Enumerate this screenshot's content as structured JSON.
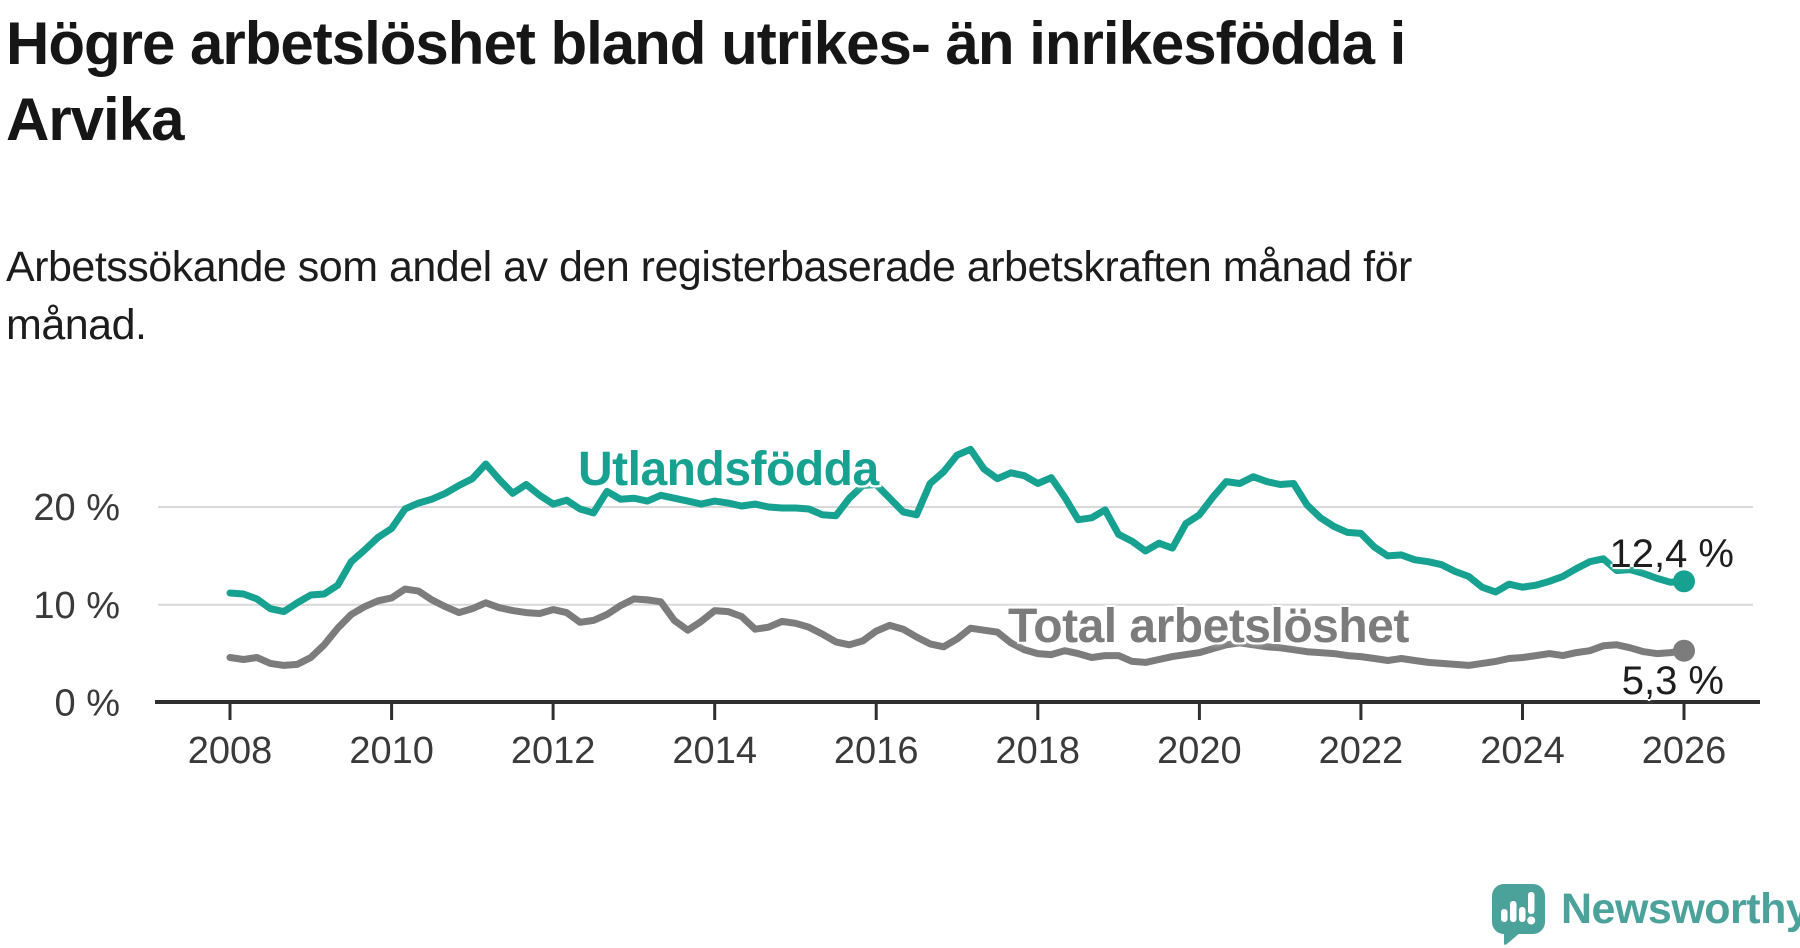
{
  "title": {
    "lines": [
      "Högre arbetslöshet bland utrikes- än inrikesfödda i",
      "Arvika"
    ]
  },
  "subtitle": {
    "lines": [
      "Arbetssökande som andel av den registerbaserade arbetskraften månad för",
      "månad."
    ]
  },
  "chart_data": {
    "type": "line",
    "title": "Högre arbetslöshet bland utrikes- än inrikesfödda i Arvika",
    "subtitle": "Arbetssökande som andel av den registerbaserade arbetskraften månad för månad.",
    "unit": "percent",
    "x_start_year": 2008.0,
    "x_end_year": 2026.0,
    "x_step_months": 2,
    "x_ticks": [
      2008,
      2010,
      2012,
      2014,
      2016,
      2018,
      2020,
      2022,
      2024,
      2026
    ],
    "y_ticks": [
      0,
      10,
      20
    ],
    "y_tick_suffix": " %",
    "ylim": [
      0,
      27
    ],
    "grid": "horizontal",
    "legend_position": "inline-labels",
    "series": [
      {
        "name": "Utlandsfödda",
        "color": "#16A191",
        "end_label": "12,4 %",
        "end_value": 12.4,
        "values": [
          11.2,
          11.1,
          10.6,
          9.6,
          9.3,
          10.2,
          11.0,
          11.1,
          12.0,
          14.4,
          15.6,
          16.9,
          17.8,
          19.8,
          20.4,
          20.8,
          21.4,
          22.2,
          22.9,
          24.4,
          22.8,
          21.4,
          22.3,
          21.2,
          20.3,
          20.7,
          19.8,
          19.4,
          21.6,
          20.8,
          20.9,
          20.6,
          21.2,
          20.9,
          20.6,
          20.3,
          20.6,
          20.4,
          20.1,
          20.3,
          20.0,
          19.9,
          19.9,
          19.8,
          19.2,
          19.1,
          20.9,
          22.2,
          22.3,
          20.9,
          19.5,
          19.2,
          22.4,
          23.6,
          25.3,
          25.9,
          23.9,
          22.9,
          23.5,
          23.2,
          22.4,
          23.0,
          21.0,
          18.7,
          18.9,
          19.7,
          17.2,
          16.5,
          15.5,
          16.3,
          15.8,
          18.3,
          19.2,
          21.0,
          22.6,
          22.4,
          23.1,
          22.6,
          22.3,
          22.4,
          20.2,
          18.9,
          18.0,
          17.4,
          17.3,
          15.9,
          15.0,
          15.1,
          14.6,
          14.4,
          14.1,
          13.4,
          12.9,
          11.8,
          11.3,
          12.1,
          11.8,
          12.0,
          12.4,
          12.9,
          13.7,
          14.4,
          14.7,
          13.5,
          13.6,
          13.2,
          12.7,
          12.3,
          12.4
        ]
      },
      {
        "name": "Total arbetslöshet",
        "color": "#7C7C7C",
        "end_label": "5,3 %",
        "end_value": 5.3,
        "values": [
          4.6,
          4.4,
          4.6,
          4.0,
          3.8,
          3.9,
          4.6,
          5.9,
          7.6,
          9.0,
          9.8,
          10.4,
          10.7,
          11.6,
          11.4,
          10.5,
          9.8,
          9.2,
          9.6,
          10.2,
          9.7,
          9.4,
          9.2,
          9.1,
          9.5,
          9.2,
          8.2,
          8.4,
          9.0,
          9.9,
          10.6,
          10.5,
          10.3,
          8.4,
          7.4,
          8.3,
          9.4,
          9.3,
          8.8,
          7.5,
          7.7,
          8.3,
          8.1,
          7.7,
          7.0,
          6.2,
          5.9,
          6.3,
          7.3,
          7.9,
          7.5,
          6.7,
          6.0,
          5.7,
          6.5,
          7.6,
          7.4,
          7.2,
          6.1,
          5.4,
          5.0,
          4.9,
          5.3,
          5.0,
          4.6,
          4.8,
          4.8,
          4.2,
          4.1,
          4.4,
          4.7,
          4.9,
          5.1,
          5.5,
          5.9,
          6.1,
          5.9,
          5.7,
          5.6,
          5.4,
          5.2,
          5.1,
          5.0,
          4.8,
          4.7,
          4.5,
          4.3,
          4.5,
          4.3,
          4.1,
          4.0,
          3.9,
          3.8,
          4.0,
          4.2,
          4.5,
          4.6,
          4.8,
          5.0,
          4.8,
          5.1,
          5.3,
          5.8,
          5.9,
          5.6,
          5.2,
          5.0,
          5.1,
          5.3
        ]
      }
    ]
  },
  "colors": {
    "accent_teal": "#16A191",
    "series_gray": "#7C7C7C",
    "axis": "#2F2F2F",
    "gridline": "#D9D9D9",
    "tick_label": "#3A3A3A",
    "logo_teal": "#4BA29B"
  },
  "logo": {
    "text": "Newsworthy",
    "icon": "newsworthy-speech-bubble-bar-chart-icon"
  }
}
